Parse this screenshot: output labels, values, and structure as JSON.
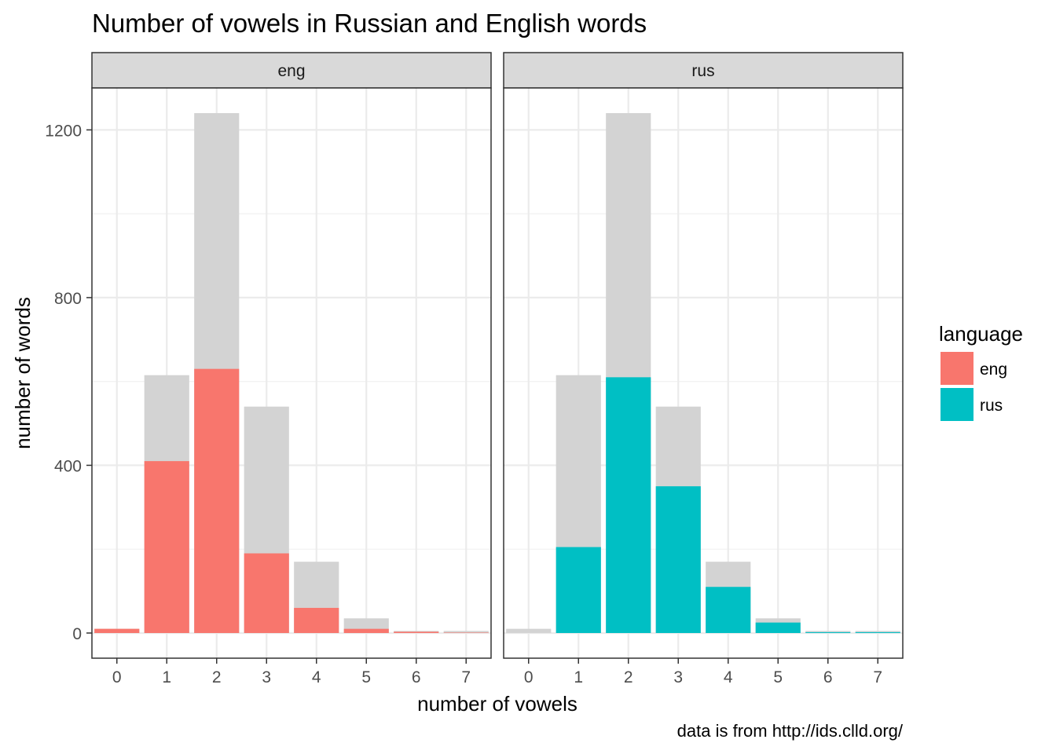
{
  "chart_data": {
    "type": "bar",
    "title": "Number of vowels in Russian and English words",
    "xlabel": "number of vowels",
    "ylabel": "number of words",
    "caption": "data is from http://ids.clld.org/",
    "categories": [
      "0",
      "1",
      "2",
      "3",
      "4",
      "5",
      "6",
      "7"
    ],
    "ylim": [
      -60,
      1300
    ],
    "yticks": [
      0,
      400,
      800,
      1200
    ],
    "grid": true,
    "background_series": {
      "name": "",
      "color": "#d3d3d3",
      "values": [
        10,
        615,
        1240,
        540,
        170,
        35,
        5,
        5
      ]
    },
    "legend": {
      "title": "language",
      "placement": "right",
      "items": [
        {
          "label": "eng",
          "color": "#f8766d"
        },
        {
          "label": "rus",
          "color": "#00bfc4"
        }
      ]
    },
    "panels": [
      {
        "strip_label": "eng",
        "color": "#f8766d",
        "values": [
          10,
          410,
          630,
          190,
          60,
          10,
          3,
          1
        ]
      },
      {
        "strip_label": "rus",
        "color": "#00bfc4",
        "values": [
          0,
          205,
          610,
          350,
          110,
          25,
          2,
          2
        ]
      }
    ]
  }
}
